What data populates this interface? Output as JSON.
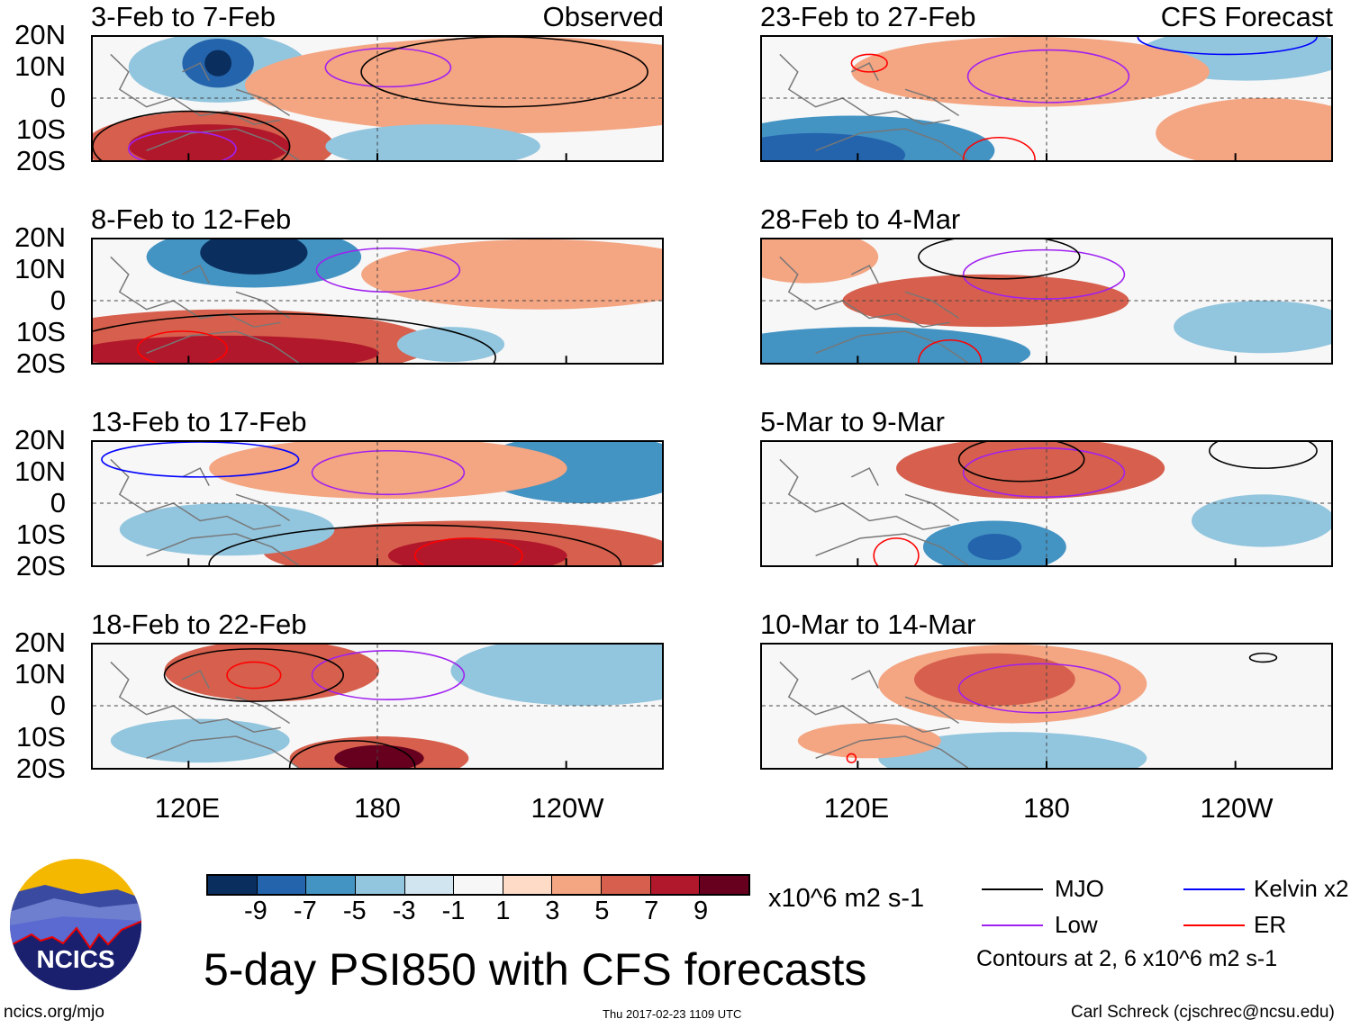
{
  "title": "5-day PSI850 with CFS forecasts",
  "units": "x10^6 m2 s-1",
  "observed_label": "Observed",
  "forecast_label": "CFS Forecast",
  "panels_left": [
    "3-Feb to 7-Feb",
    "8-Feb to 12-Feb",
    "13-Feb to 17-Feb",
    "18-Feb to 22-Feb"
  ],
  "panels_right": [
    "23-Feb to 27-Feb",
    "28-Feb to 4-Mar",
    "5-Mar to 9-Mar",
    "10-Mar to 14-Mar"
  ],
  "lat_labels": [
    "20N",
    "10N",
    "0",
    "10S",
    "20S"
  ],
  "lon_labels": [
    "120E",
    "180",
    "120W"
  ],
  "colorbar": {
    "labels": [
      "-9",
      "-7",
      "-5",
      "-3",
      "-1",
      "1",
      "3",
      "5",
      "7",
      "9"
    ],
    "colors": [
      "#0a2e5e",
      "#2464ad",
      "#4393c3",
      "#92c5de",
      "#d1e5f0",
      "#f7f7f7",
      "#fddbc7",
      "#f4a582",
      "#d6604d",
      "#b2182b",
      "#67001f"
    ]
  },
  "legend": {
    "items": [
      {
        "label": "MJO",
        "color": "#000000"
      },
      {
        "label": "Kelvin x2",
        "color": "#0000ff"
      },
      {
        "label": "Low",
        "color": "#a020f0"
      },
      {
        "label": "ER",
        "color": "#ff0000"
      }
    ],
    "note": "Contours at 2, 6 x10^6 m2 s-1"
  },
  "logo_text": "NCICS",
  "footer": {
    "url": "ncics.org/mjo",
    "timestamp": "Thu 2017-02-23 1109 UTC",
    "author": "Carl Schreck (cjschrec@ncsu.edu)"
  }
}
